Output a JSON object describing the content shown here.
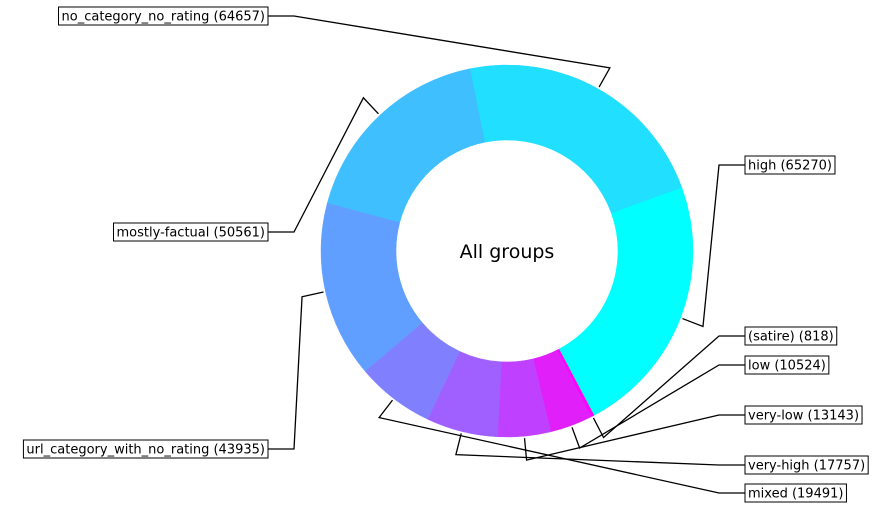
{
  "chart_data": {
    "type": "pie",
    "variant": "donut",
    "center_text": "All groups",
    "start_angle_deg": -20,
    "direction": "clockwise",
    "slices": [
      {
        "label": "high",
        "value": 65270,
        "display": "high (65270)",
        "color": "#00ffff"
      },
      {
        "label": "(satire)",
        "value": 818,
        "display": "(satire) (818)",
        "color": "#ff00ff"
      },
      {
        "label": "low",
        "value": 10524,
        "display": "low (10524)",
        "color": "#e01ff9"
      },
      {
        "label": "very-low",
        "value": 13143,
        "display": "very-low (13143)",
        "color": "#c040ff"
      },
      {
        "label": "very-high",
        "value": 17757,
        "display": "very-high (17757)",
        "color": "#a060ff"
      },
      {
        "label": "mixed",
        "value": 19491,
        "display": "mixed (19491)",
        "color": "#8080ff"
      },
      {
        "label": "url_category_with_no_rating",
        "value": 43935,
        "display": "url_category_with_no_rating (43935)",
        "color": "#609fff"
      },
      {
        "label": "mostly-factual",
        "value": 50561,
        "display": "mostly-factual (50561)",
        "color": "#40bfff"
      },
      {
        "label": "no_category_no_rating",
        "value": 64657,
        "display": "no_category_no_rating (64657)",
        "color": "#20dfff"
      }
    ]
  }
}
